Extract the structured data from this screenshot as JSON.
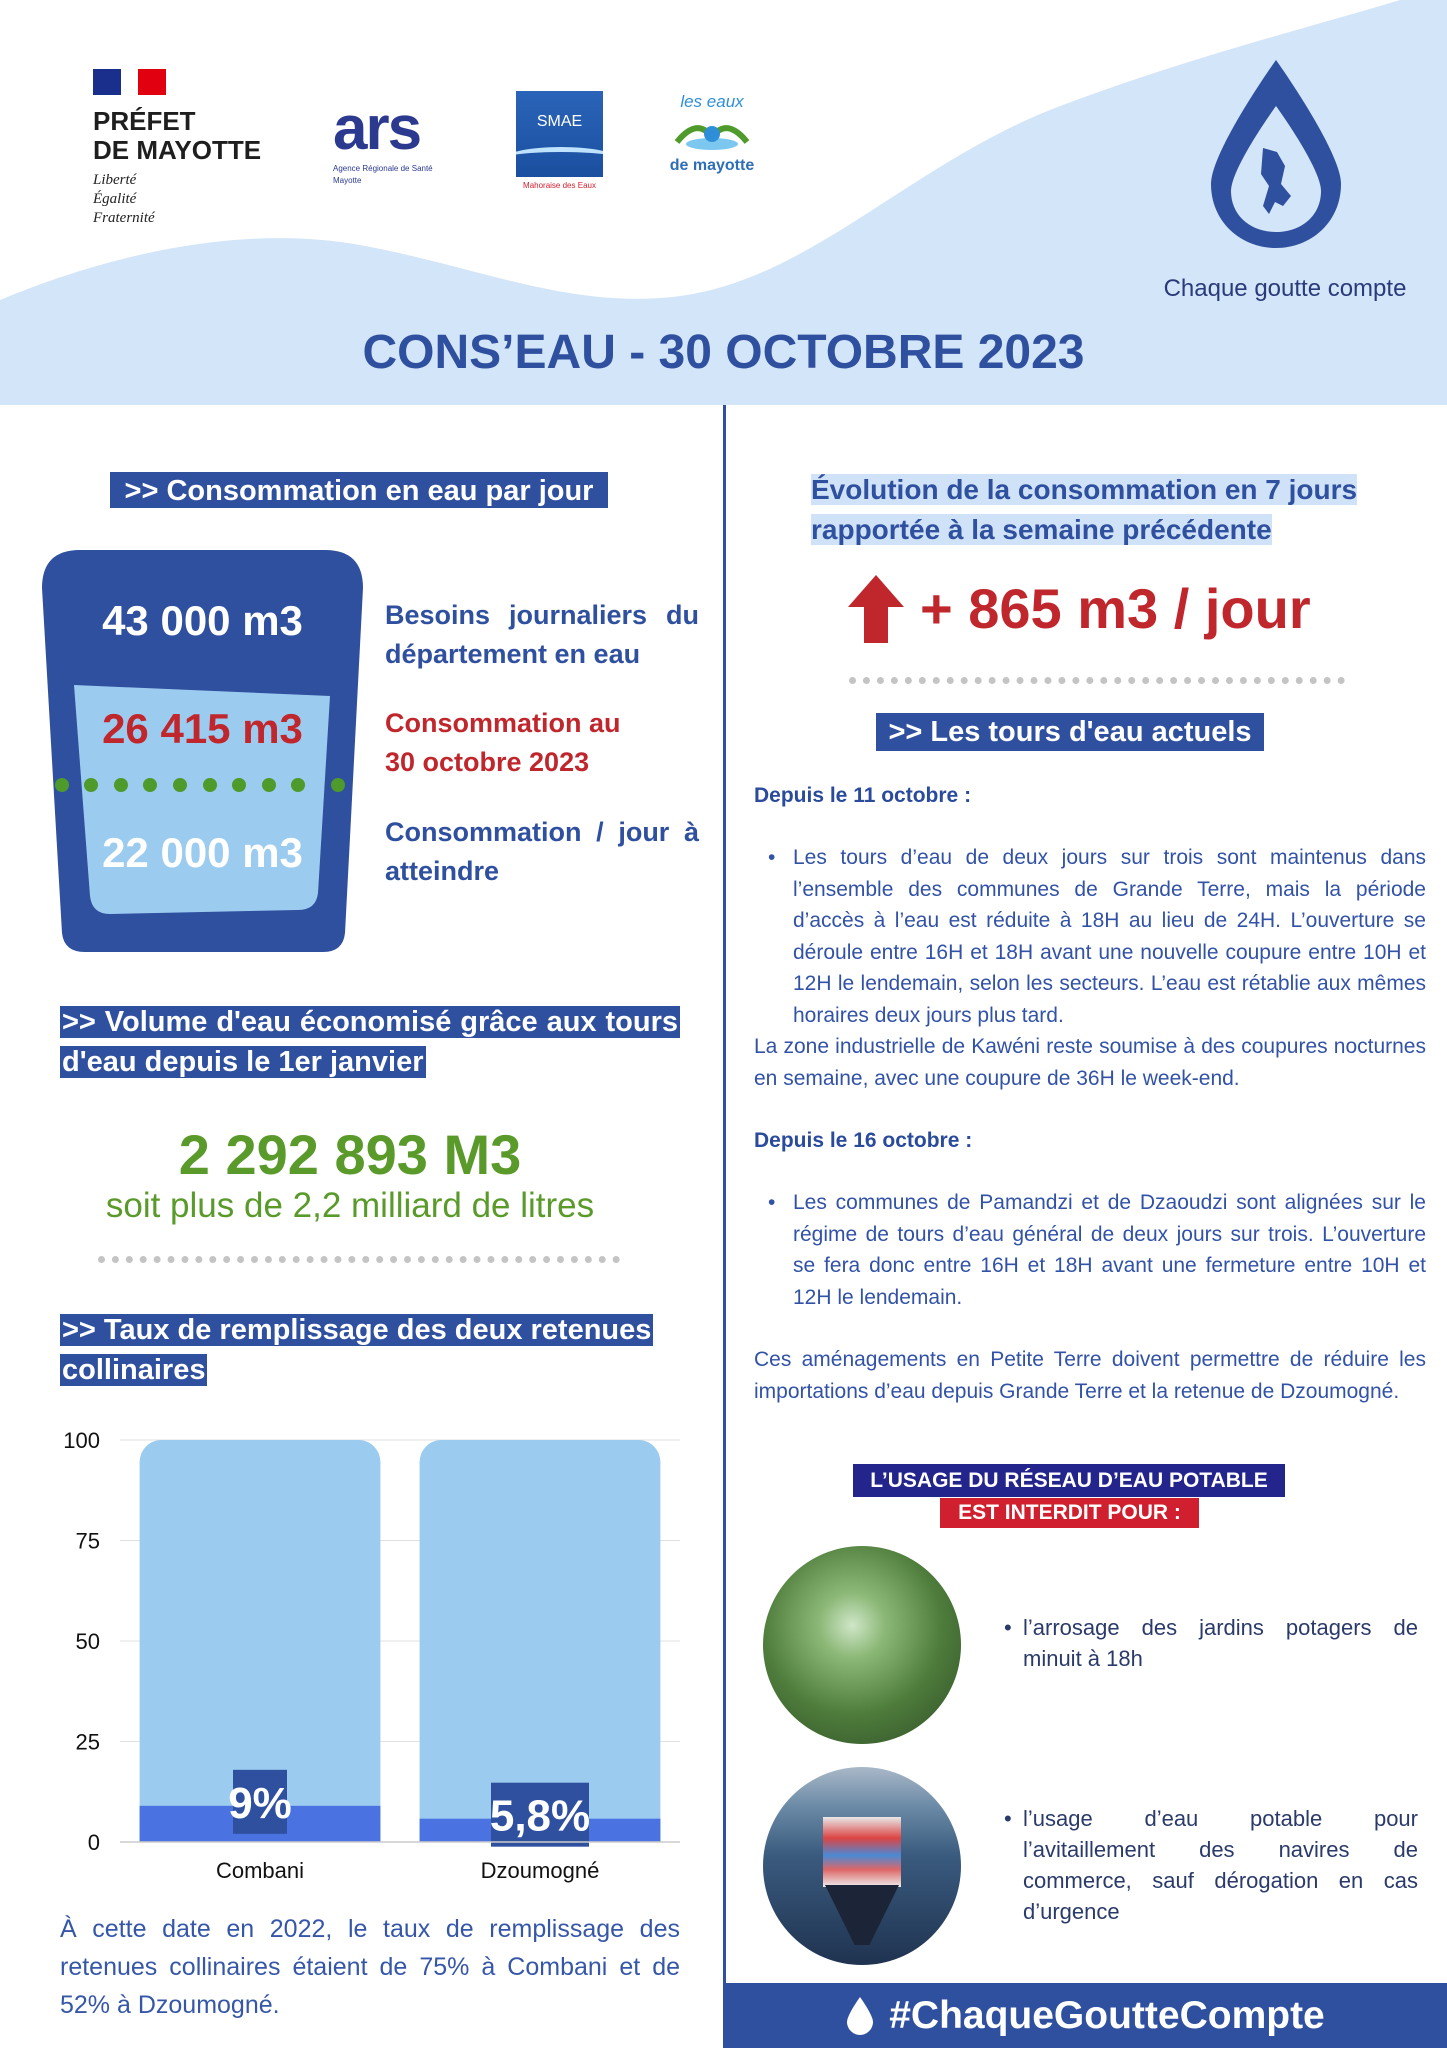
{
  "header": {
    "prefet_line1": "PRÉFET",
    "prefet_line2": "DE MAYOTTE",
    "motto": [
      "Liberté",
      "Égalité",
      "Fraternité"
    ],
    "logos": {
      "ars": "ars",
      "ars_sub": "Agence Régionale de Santé",
      "ars_region": "Mayotte",
      "smae": "SMAE",
      "smae_sub": "Mahoraise des Eaux",
      "eaux_top": "les eaux",
      "eaux_bottom": "de mayotte"
    },
    "slogan": "Chaque goutte compte",
    "title": "CONS’EAU - 30 OCTOBRE 2023",
    "drop_icon": "water-drop-with-map-icon"
  },
  "left": {
    "consumption_header": ">> Consommation en eau par jour",
    "glass": {
      "needs_value": "43 000 m3",
      "current_value": "26 415 m3",
      "target_value": "22 000 m3"
    },
    "labels": {
      "needs": "Besoins journaliers du département en eau",
      "current": "Consommation au 30 octobre 2023",
      "target": "Consommation / jour à atteindre"
    },
    "saved_header": ">> Volume d'eau économisé grâce aux tours d'eau depuis le 1er janvier",
    "saved_value": "2 292 893 M3",
    "saved_sub": "soit plus de 2,2 milliard de litres",
    "fill_header": ">> Taux de remplissage des deux retenues collinaires",
    "footnote": "À cette date en 2022, le taux de remplissage des retenues collinaires étaient de 75% à Combani et de 52% à Dzoumogné."
  },
  "chart_data": {
    "type": "bar",
    "categories": [
      "Combani",
      "Dzoumogné"
    ],
    "values": [
      9,
      5.8
    ],
    "data_labels": [
      "9%",
      "5,8%"
    ],
    "capacity": 100,
    "ylim": [
      0,
      100
    ],
    "yticks": [
      "0",
      "25",
      "50",
      "75",
      "100"
    ],
    "grid": true,
    "colors": {
      "fill": "#4a72e0",
      "capacity": "#9ccbf0",
      "label_bg": "#2f4f9f"
    }
  },
  "right": {
    "evolution_header": "Évolution de la consommation en 7 jours rapportée à la semaine précédente",
    "evolution_value": "+ 865 m3 / jour",
    "evolution_icon": "arrow-up-icon",
    "tours_header": ">> Les tours d'eau actuels",
    "section1_title": "Depuis le 11 octobre :",
    "section1_bullet": "Les tours d’eau de deux jours sur trois sont maintenus dans l’ensemble des communes de Grande Terre, mais la période d’accès à l’eau est réduite à 18H au lieu de 24H. L’ouverture se déroule entre 16H et 18H avant une nouvelle coupure entre 10H et 12H le lendemain, selon les secteurs. L’eau est rétablie aux mêmes horaires deux jours plus tard.",
    "section1_note": "La zone industrielle de Kawéni reste soumise à des coupures nocturnes en semaine, avec une coupure de 36H le week-end.",
    "section2_title": "Depuis le 16 octobre :",
    "section2_bullet": "Les communes de Pamandzi et de Dzaoudzi sont alignées sur le régime de tours d’eau général de deux jours sur trois. L’ouverture se fera donc entre 16H et 18H avant une fermeture entre 10H et 12H le lendemain.",
    "section2_note": "Ces aménagements en Petite Terre doivent permettre de réduire les importations d’eau depuis Grande Terre et la retenue de Dzoumogné.",
    "ban_line1": "L’USAGE DU RÉSEAU D’EAU POTABLE",
    "ban_line2": "EST INTERDIT POUR :",
    "bans": [
      "l’arrosage des jardins potagers de minuit à 18h",
      "l’usage d’eau potable pour l’avitaillement des navires de commerce, sauf dérogation en cas d’urgence"
    ],
    "hashtag": "#ChaqueGoutteCompte"
  },
  "colors": {
    "primary": "#2f4f9f",
    "red": "#c0272d",
    "green": "#5a9a2a",
    "light": "#d3e5f8"
  }
}
